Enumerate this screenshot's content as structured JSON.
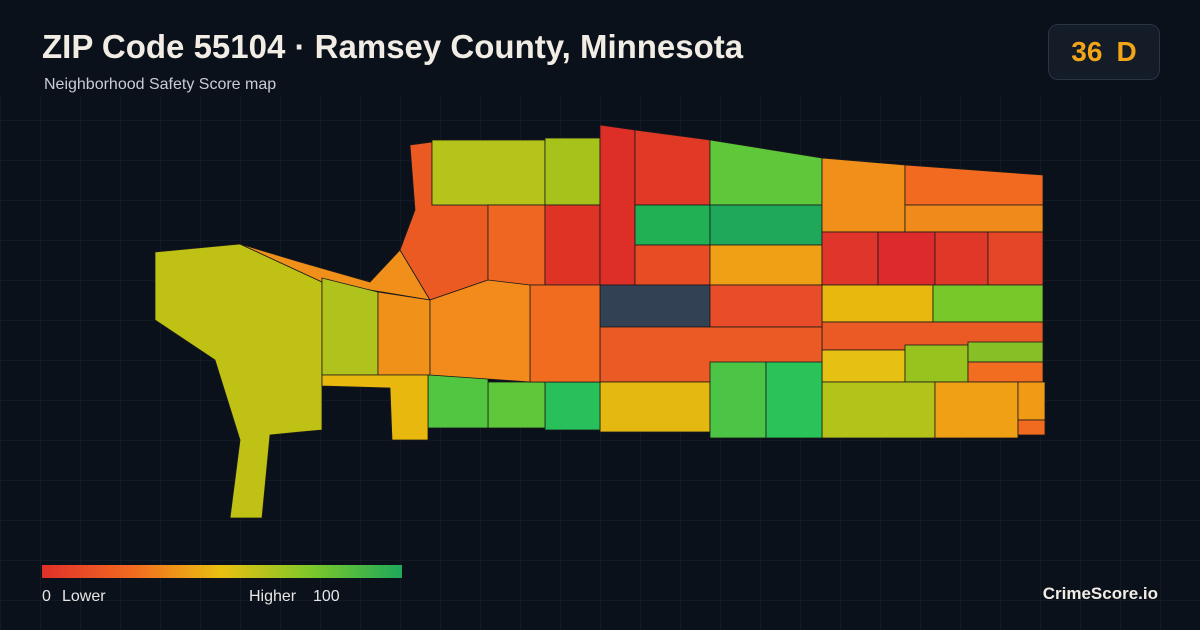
{
  "header": {
    "title": "ZIP Code 55104 · Ramsey County, Minnesota",
    "subtitle": "Neighborhood Safety Score map"
  },
  "score": {
    "value": "36",
    "grade": "D"
  },
  "legend": {
    "min": "0",
    "min_label": "Lower",
    "max_label": "Higher",
    "max": "100"
  },
  "brand": "CrimeScore.io"
}
